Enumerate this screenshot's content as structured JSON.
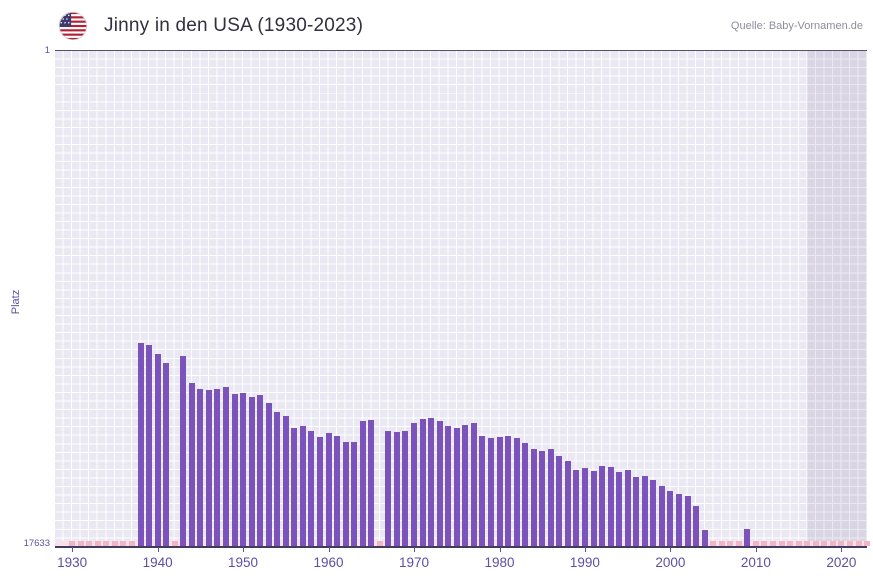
{
  "header": {
    "title": "Jinny in den USA (1930-2023)",
    "source": "Quelle: Baby-Vornamen.de",
    "flag_icon": "us-flag"
  },
  "chart_data": {
    "type": "bar",
    "title": "Jinny in den USA (1930-2023)",
    "xlabel": "",
    "ylabel": "Platz",
    "y_axis": {
      "scale": "log",
      "inverted": true,
      "min": 1,
      "max": 17633,
      "top_label": "1",
      "bottom_label": "17633"
    },
    "x_range": [
      1928,
      2023
    ],
    "x_ticks": [
      1930,
      1940,
      1950,
      1960,
      1970,
      1980,
      1990,
      2000,
      2010,
      2020
    ],
    "grid": true,
    "legend": "none",
    "ranked": [
      [
        1938,
        320
      ],
      [
        1939,
        335
      ],
      [
        1940,
        395
      ],
      [
        1941,
        475
      ],
      [
        1943,
        415
      ],
      [
        1944,
        700
      ],
      [
        1945,
        790
      ],
      [
        1946,
        810
      ],
      [
        1947,
        800
      ],
      [
        1948,
        760
      ],
      [
        1949,
        880
      ],
      [
        1950,
        850
      ],
      [
        1951,
        930
      ],
      [
        1952,
        900
      ],
      [
        1953,
        1040
      ],
      [
        1954,
        1260
      ],
      [
        1955,
        1340
      ],
      [
        1956,
        1720
      ],
      [
        1957,
        1660
      ],
      [
        1958,
        1830
      ],
      [
        1959,
        2060
      ],
      [
        1960,
        1890
      ],
      [
        1961,
        1990
      ],
      [
        1962,
        2250
      ],
      [
        1963,
        2280
      ],
      [
        1964,
        1480
      ],
      [
        1965,
        1450
      ],
      [
        1967,
        1800
      ],
      [
        1968,
        1870
      ],
      [
        1969,
        1830
      ],
      [
        1970,
        1560
      ],
      [
        1971,
        1430
      ],
      [
        1972,
        1400
      ],
      [
        1973,
        1490
      ],
      [
        1974,
        1640
      ],
      [
        1975,
        1710
      ],
      [
        1976,
        1620
      ],
      [
        1977,
        1560
      ],
      [
        1978,
        1990
      ],
      [
        1979,
        2090
      ],
      [
        1980,
        2040
      ],
      [
        1981,
        1990
      ],
      [
        1982,
        2090
      ],
      [
        1983,
        2300
      ],
      [
        1984,
        2590
      ],
      [
        1985,
        2700
      ],
      [
        1986,
        2610
      ],
      [
        1987,
        3000
      ],
      [
        1988,
        3310
      ],
      [
        1989,
        3890
      ],
      [
        1990,
        3800
      ],
      [
        1991,
        4000
      ],
      [
        1992,
        3620
      ],
      [
        1993,
        3700
      ],
      [
        1994,
        4090
      ],
      [
        1995,
        3900
      ],
      [
        1996,
        4480
      ],
      [
        1997,
        4380
      ],
      [
        1998,
        4800
      ],
      [
        1999,
        5350
      ],
      [
        2000,
        6000
      ],
      [
        2001,
        6300
      ],
      [
        2002,
        6600
      ],
      [
        2003,
        8000
      ],
      [
        2004,
        12800
      ],
      [
        2009,
        12600
      ]
    ],
    "unranked_years": [
      1930,
      1931,
      1932,
      1933,
      1934,
      1935,
      1936,
      1937,
      1942,
      1966,
      2005,
      2006,
      2007,
      2008,
      2010,
      2011,
      2012,
      2013,
      2014,
      2015,
      2016,
      2017,
      2018,
      2019,
      2020,
      2021,
      2022,
      2023
    ],
    "shaded_region": {
      "from": 2016,
      "to": 2023
    },
    "colors": {
      "bar": "#7b53bb",
      "unranked_marker": "#f1b5c6",
      "baseline_strip": "#f9e2ea",
      "plot_background": "#eae8f2",
      "grid_line": "#ffffff",
      "axis_text": "#5e4fa2"
    }
  }
}
